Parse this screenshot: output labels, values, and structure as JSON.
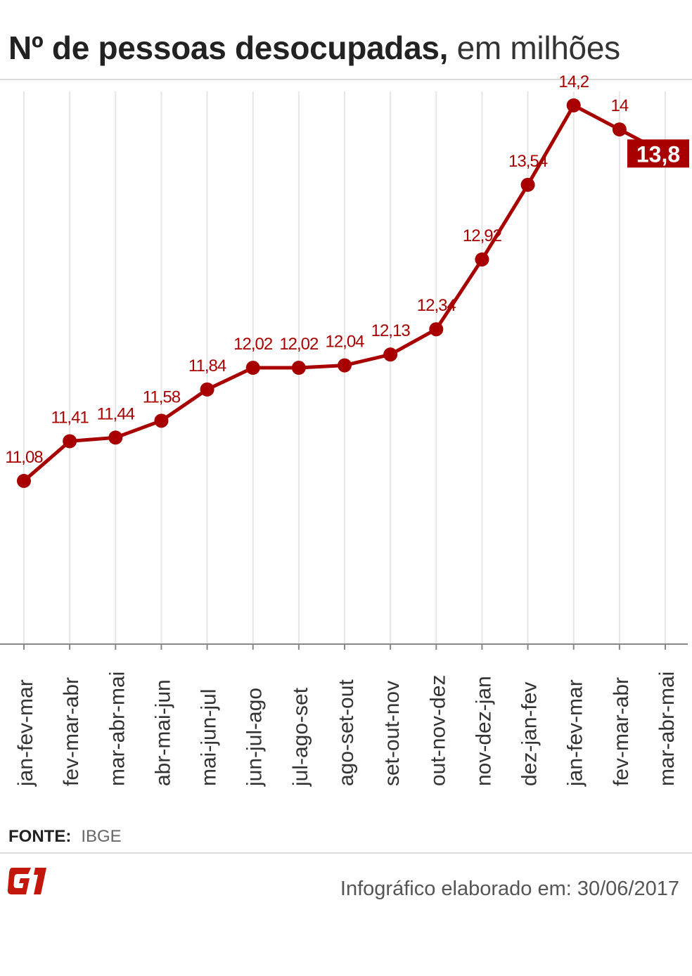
{
  "header": {
    "title_bold": "Nº de pessoas desocupadas,",
    "title_light": " em milhões"
  },
  "chart_data": {
    "type": "line",
    "title": "Nº de pessoas desocupadas, em milhões",
    "xlabel": "",
    "ylabel": "",
    "categories": [
      "jan-fev-mar",
      "fev-mar-abr",
      "mar-abr-mai",
      "abr-mai-jun",
      "mai-jun-jul",
      "jun-jul-ago",
      "jul-ago-set",
      "ago-set-out",
      "set-out-nov",
      "out-nov-dez",
      "nov-dez-jan",
      "dez-jan-fev",
      "jan-fev-mar",
      "fev-mar-abr",
      "mar-abr-mai"
    ],
    "values": [
      11.08,
      11.41,
      11.44,
      11.58,
      11.84,
      12.02,
      12.02,
      12.04,
      12.13,
      12.34,
      12.92,
      13.54,
      14.2,
      14,
      13.8
    ],
    "value_labels": [
      "11,08",
      "11,41",
      "11,44",
      "11,58",
      "11,84",
      "12,02",
      "12,02",
      "12,04",
      "12,13",
      "12,34",
      "12,92",
      "13,54",
      "14,2",
      "14",
      "13,8"
    ],
    "highlight_index": 14,
    "ylim": [
      9,
      14.9
    ],
    "grid": "vertical",
    "legend": "none",
    "colors": {
      "line": "#a80000",
      "label": "#a80000",
      "highlight_bg": "#a80000",
      "highlight_text": "#ffffff",
      "grid": "#e6e6e6",
      "axis": "#888888",
      "tick_label": "#333333"
    }
  },
  "footer": {
    "source_label": "FONTE:",
    "source_value": "IBGE",
    "logo": "G1",
    "logo_color": "#c4170c",
    "credit": "Infográfico elaborado em: 30/06/2017"
  }
}
